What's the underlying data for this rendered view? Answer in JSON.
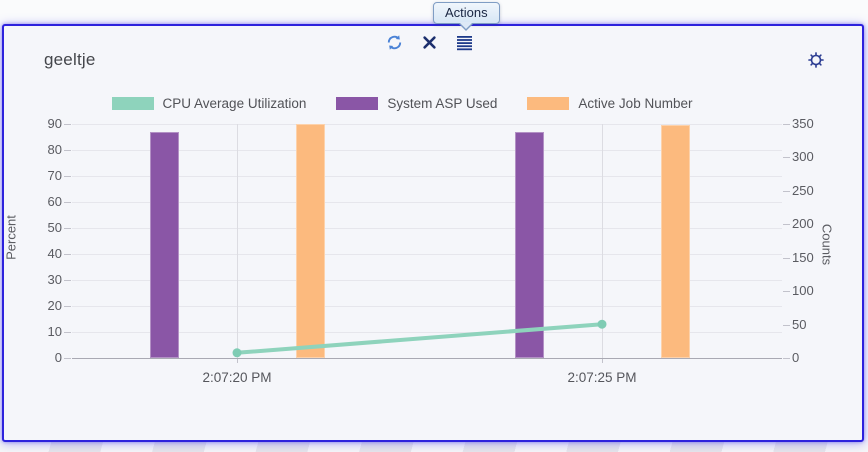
{
  "tooltip": {
    "label": "Actions"
  },
  "card": {
    "title": "geeltje"
  },
  "toolbar": {
    "icons": [
      "refresh-icon",
      "close-icon",
      "actions-menu-icon"
    ],
    "settings_icon": "gear-icon"
  },
  "colors": {
    "card_border": "#2d22dd",
    "refresh_blue": "#4a82d6",
    "icon_navy": "#1c2f6d",
    "menu_navy": "#1e3a8a",
    "gear_navy": "#2c3d92",
    "tooltip_border": "#7f9dc4"
  },
  "chart_data": {
    "type": "bar",
    "subtype": "combo-bar-line-dual-axis",
    "x_labels": [
      "2:07:20 PM",
      "2:07:25 PM"
    ],
    "series": [
      {
        "name": "CPU Average Utilization",
        "render": "line",
        "axis": "left",
        "color": "#8ed3bc",
        "point_color": "#7fccb4",
        "values": [
          2,
          13
        ]
      },
      {
        "name": "System ASP Used",
        "render": "bar",
        "axis": "left",
        "color": "#8a56a6",
        "values": [
          87,
          87
        ]
      },
      {
        "name": "Active Job Number",
        "render": "bar",
        "axis": "right",
        "color": "#fcba7e",
        "values": [
          350,
          348
        ]
      }
    ],
    "left_axis": {
      "title": "Percent",
      "min": 0,
      "max": 90,
      "tick_step": 10,
      "ticks": [
        0,
        10,
        20,
        30,
        40,
        50,
        60,
        70,
        80,
        90
      ]
    },
    "right_axis": {
      "title": "Counts",
      "min": 0,
      "max": 350,
      "tick_step": 50,
      "ticks": [
        0,
        50,
        100,
        150,
        200,
        250,
        300,
        350
      ]
    },
    "grid": true,
    "legend_position": "top"
  }
}
